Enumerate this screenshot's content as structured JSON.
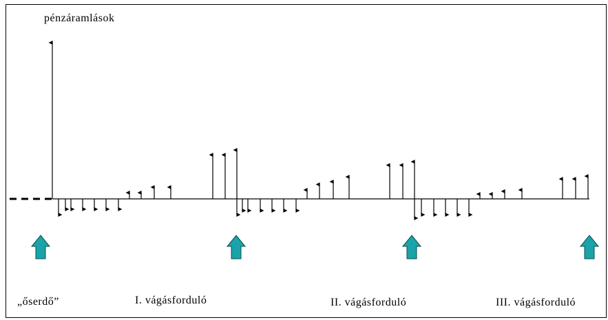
{
  "title": "pénzáramlások",
  "labels": {
    "l0": "„őserdő”",
    "l1": "I. vágásforduló",
    "l2": "II. vágásforduló",
    "l3": "III. vágásforduló"
  },
  "colors": {
    "line": "#000000",
    "marker_fill": "#1aa3a8",
    "marker_stroke": "#0a4f52"
  }
}
